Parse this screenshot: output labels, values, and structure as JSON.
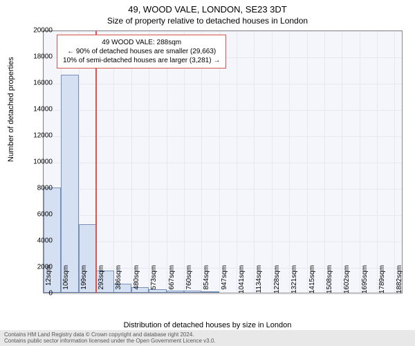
{
  "title_main": "49, WOOD VALE, LONDON, SE23 3DT",
  "title_sub": "Size of property relative to detached houses in London",
  "chart": {
    "type": "histogram",
    "background_color": "#f4f6fb",
    "border_color": "#888888",
    "grid_color": "#e6e8ef",
    "bar_fill": "#d5e0f2",
    "bar_border": "#7a8fb8",
    "marker_color": "#d9534f",
    "ylim": [
      0,
      20000
    ],
    "yticks": [
      0,
      2000,
      4000,
      6000,
      8000,
      10000,
      12000,
      14000,
      16000,
      18000,
      20000
    ],
    "xticks": [
      12,
      106,
      199,
      293,
      386,
      480,
      573,
      667,
      760,
      854,
      947,
      1041,
      1134,
      1228,
      1321,
      1415,
      1508,
      1602,
      1695,
      1789,
      1882
    ],
    "xlim": [
      12,
      1929
    ],
    "bins": [
      {
        "x": 12,
        "count": 8000
      },
      {
        "x": 106,
        "count": 16600
      },
      {
        "x": 199,
        "count": 5200
      },
      {
        "x": 293,
        "count": 1700
      },
      {
        "x": 386,
        "count": 700
      },
      {
        "x": 480,
        "count": 400
      },
      {
        "x": 573,
        "count": 250
      },
      {
        "x": 667,
        "count": 180
      },
      {
        "x": 760,
        "count": 150
      },
      {
        "x": 854,
        "count": 100
      }
    ],
    "bin_width": 93.5,
    "marker_x": 288,
    "ylabel": "Number of detached properties",
    "xlabel": "Distribution of detached houses by size in London",
    "tick_fontsize": 10,
    "label_fontsize": 11
  },
  "annotation": {
    "line1": "49 WOOD VALE: 288sqm",
    "line2": "← 90% of detached houses are smaller (29,663)",
    "line3": "10% of semi-detached houses are larger (3,281) →",
    "border_color": "#d9534f"
  },
  "footer": {
    "line1": "Contains HM Land Registry data © Crown copyright and database right 2024.",
    "line2": "Contains public sector information licensed under the Open Government Licence v3.0.",
    "background_color": "#e8e8e8",
    "text_color": "#555555"
  }
}
